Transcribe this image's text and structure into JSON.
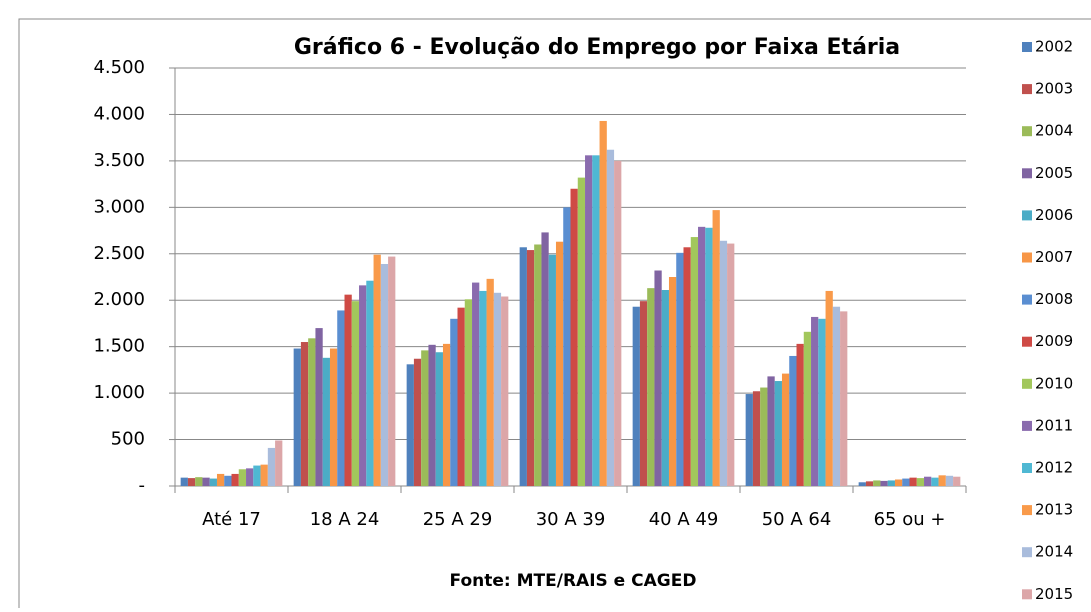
{
  "chart_data": {
    "type": "bar",
    "title": "Gráfico 6 - Evolução do Emprego por Faixa Etária",
    "source": "Fonte: MTE/RAIS e CAGED",
    "categories": [
      "Até 17",
      "18 A 24",
      "25 A 29",
      "30 A 39",
      "40 A 49",
      "50 A 64",
      "65 ou +"
    ],
    "ylim": [
      0,
      4500
    ],
    "yticks": [
      {
        "value": 0,
        "label": "-"
      },
      500,
      {
        "value": 1000,
        "label": "1.000"
      },
      {
        "value": 1500,
        "label": "1.500"
      },
      {
        "value": 2000,
        "label": "2.000"
      },
      {
        "value": 2500,
        "label": "2.500"
      },
      {
        "value": 3000,
        "label": "3.000"
      },
      {
        "value": 3500,
        "label": "3.500"
      },
      {
        "value": 4000,
        "label": "4.000"
      },
      {
        "value": 4500,
        "label": "4.500"
      }
    ],
    "grid": true,
    "legend": "right",
    "series": [
      {
        "name": "2002",
        "color": "#4f81bd",
        "values": [
          90,
          1480,
          1310,
          2570,
          1930,
          990,
          40
        ]
      },
      {
        "name": "2003",
        "color": "#c0504d",
        "values": [
          85,
          1550,
          1370,
          2540,
          1990,
          1020,
          50
        ]
      },
      {
        "name": "2004",
        "color": "#9bbb59",
        "values": [
          95,
          1590,
          1460,
          2600,
          2130,
          1060,
          60
        ]
      },
      {
        "name": "2005",
        "color": "#8064a2",
        "values": [
          90,
          1700,
          1520,
          2730,
          2320,
          1180,
          55
        ]
      },
      {
        "name": "2006",
        "color": "#4bacc6",
        "values": [
          80,
          1380,
          1440,
          2490,
          2110,
          1130,
          60
        ]
      },
      {
        "name": "2007",
        "color": "#f79646",
        "values": [
          130,
          1480,
          1530,
          2630,
          2250,
          1210,
          70
        ]
      },
      {
        "name": "2008",
        "color": "#5a8ed1",
        "values": [
          110,
          1890,
          1800,
          3000,
          2510,
          1400,
          80
        ]
      },
      {
        "name": "2009",
        "color": "#cf4a45",
        "values": [
          130,
          2060,
          1920,
          3200,
          2570,
          1530,
          90
        ]
      },
      {
        "name": "2010",
        "color": "#a2c75c",
        "values": [
          180,
          1990,
          2010,
          3320,
          2680,
          1660,
          85
        ]
      },
      {
        "name": "2011",
        "color": "#8a6bae",
        "values": [
          190,
          2160,
          2190,
          3560,
          2790,
          1820,
          100
        ]
      },
      {
        "name": "2012",
        "color": "#4fb8d3",
        "values": [
          220,
          2210,
          2100,
          3560,
          2780,
          1800,
          90
        ]
      },
      {
        "name": "2013",
        "color": "#f99a4a",
        "values": [
          230,
          2490,
          2230,
          3930,
          2970,
          2100,
          115
        ]
      },
      {
        "name": "2014",
        "color": "#a9bcdc",
        "values": [
          410,
          2390,
          2080,
          3620,
          2640,
          1930,
          110
        ]
      },
      {
        "name": "2015",
        "color": "#dca6a8",
        "values": [
          490,
          2470,
          2040,
          3500,
          2610,
          1880,
          100
        ]
      }
    ]
  }
}
